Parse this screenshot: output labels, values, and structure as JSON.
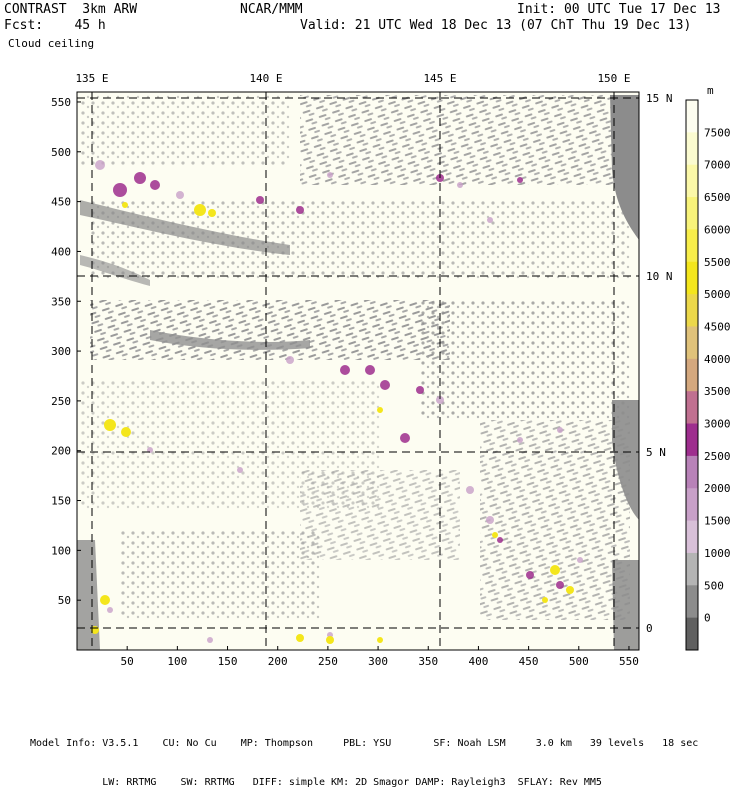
{
  "header": {
    "product": "CONTRAST  3km ARW",
    "forecast": "Fcst:    45 h",
    "field": "Cloud ceiling",
    "center": "NCAR/MMM",
    "init": "Init: 00 UTC Tue 17 Dec 13",
    "valid": "Valid: 21 UTC Wed 18 Dec 13 (07 ChT Thu 19 Dec 13)"
  },
  "map": {
    "lon_labels": [
      "135 E",
      "140 E",
      "145 E",
      "150 E"
    ],
    "lat_labels": [
      "15 N",
      "10 N",
      "5 N",
      "0"
    ],
    "x_ticks": [
      "50",
      "100",
      "150",
      "200",
      "250",
      "300",
      "350",
      "400",
      "450",
      "500",
      "550"
    ],
    "y_ticks": [
      "550",
      "500",
      "450",
      "400",
      "350",
      "300",
      "250",
      "200",
      "150",
      "100",
      "50"
    ],
    "x_tick_values": [
      50,
      100,
      150,
      200,
      250,
      300,
      350,
      400,
      450,
      500,
      550
    ],
    "y_tick_values": [
      550,
      500,
      450,
      400,
      350,
      300,
      250,
      200,
      150,
      100,
      50
    ],
    "grid_range": [
      0,
      560
    ],
    "lon_line_values": [
      135,
      140,
      145,
      150
    ],
    "lat_line_values": [
      15,
      10,
      5,
      0
    ]
  },
  "colorbar": {
    "unit": "m",
    "labels": [
      "7500",
      "7000",
      "6500",
      "6000",
      "5500",
      "5000",
      "4500",
      "4000",
      "3500",
      "3000",
      "2500",
      "2000",
      "1500",
      "1000",
      "500",
      "0"
    ],
    "colors": [
      "#fdfdf0",
      "#fbfbd0",
      "#fbf8a8",
      "#f8f37a",
      "#f8ee4a",
      "#f4e61c",
      "#ecd84a",
      "#e0c27a",
      "#d4a87e",
      "#c07090",
      "#9e2e8e",
      "#b882b8",
      "#c8a0c8",
      "#d8c0d8",
      "#b4b4b4",
      "#8c8c8c",
      "#606060"
    ]
  },
  "footer": {
    "line1": "Model Info: V3.5.1    CU: No Cu    MP: Thompson     PBL: YSU       SF: Noah LSM     3.0 km   39 levels   18 sec",
    "line2": "            LW: RRTMG    SW: RRTMG   DIFF: simple KM: 2D Smagor DAMP: Rayleigh3  SFLAY: Rev MM5"
  }
}
